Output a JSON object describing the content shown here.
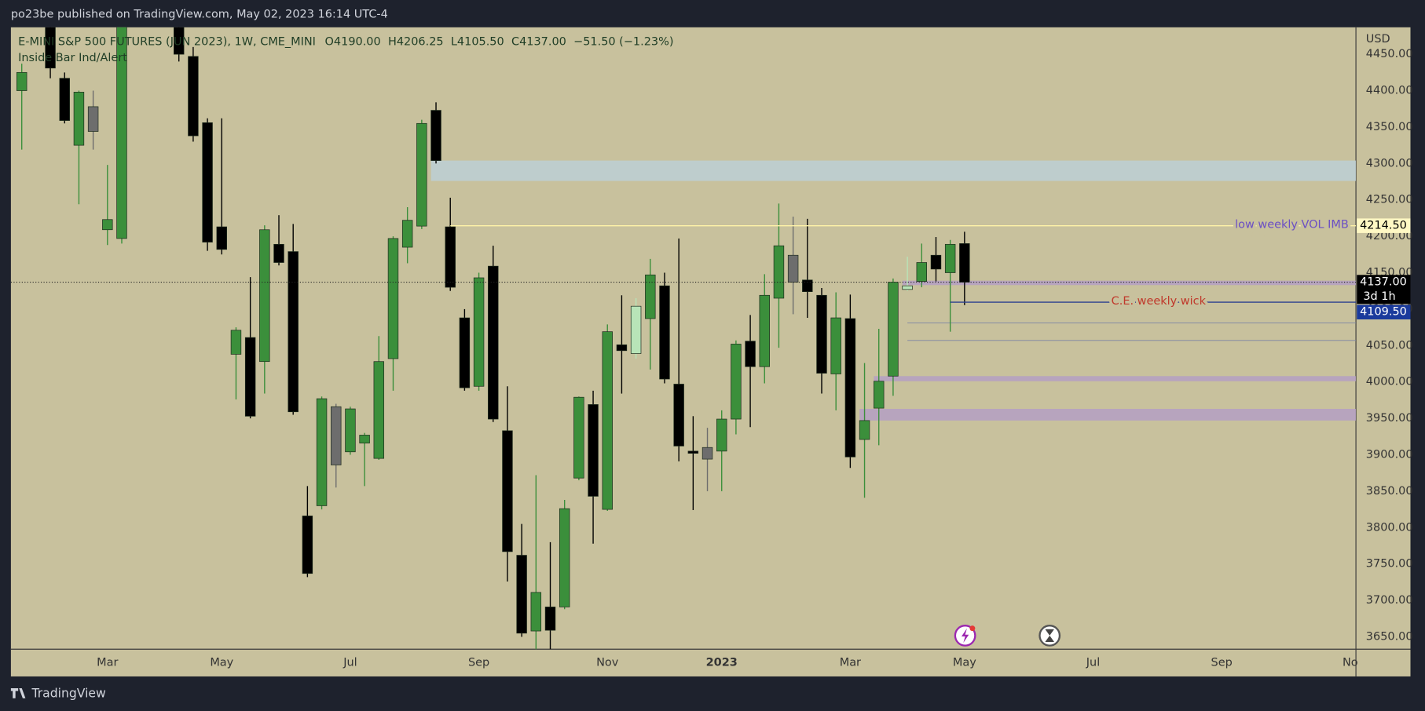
{
  "header": {
    "publisher": "po23be published on TradingView.com, May 02, 2023 16:14 UTC-4"
  },
  "footer": {
    "brand": "TradingView"
  },
  "chart_data": {
    "type": "candlestick",
    "title": "E-MINI S&P 500 FUTURES (JUN 2023), 1W, CME_MINI",
    "legend": [
      {
        "key": "O",
        "value": "4190.00"
      },
      {
        "key": "H",
        "value": "4206.25"
      },
      {
        "key": "L",
        "value": "4105.50"
      },
      {
        "key": "C",
        "value": "4137.00"
      }
    ],
    "change": "−51.50 (−1.23%)",
    "indicator": "Inside Bar Ind/Alert",
    "currency": "USD",
    "open": [
      4400,
      null,
      4500,
      4417,
      4325,
      4378,
      4209,
      4197,
      null,
      null,
      null,
      4540,
      4447,
      4356,
      4213,
      4038,
      4061,
      4028,
      4189,
      4179,
      3816,
      3830,
      3966,
      3904,
      3916,
      3895,
      4032,
      4185,
      4214,
      4373,
      4213,
      4088,
      3994,
      4159,
      3933,
      3762,
      3658,
      3691,
      3691,
      3868,
      3969,
      3825,
      4051,
      4039,
      4087,
      4132,
      3997,
      3905,
      3894,
      3905,
      3949,
      4056,
      4021,
      4115,
      4174,
      4140,
      4119,
      4011,
      4087,
      3921,
      3964,
      4008,
      4127,
      4138,
      4174,
      4150,
      4190
    ],
    "high": [
      4437,
      null,
      4510,
      4425,
      4400,
      4400,
      4298,
      4540,
      null,
      null,
      null,
      4560,
      4460,
      4362,
      4362,
      4075,
      4144,
      4215,
      4229,
      4217,
      3857,
      3980,
      3970,
      3966,
      3930,
      4063,
      4200,
      4240,
      4360,
      4384,
      4253,
      4100,
      4150,
      4187,
      3994,
      3805,
      3872,
      3780,
      3838,
      3980,
      3988,
      4079,
      4119,
      4115,
      4169,
      4150,
      4197,
      3953,
      3937,
      3961,
      4057,
      4092,
      4148,
      4245,
      4227,
      4224,
      4129,
      4123,
      4120,
      4026,
      4073,
      4142,
      4172,
      4190,
      4199,
      4195,
      4206.25
    ],
    "low": [
      4319,
      null,
      4417,
      4355,
      4244,
      4319,
      4188,
      4190,
      null,
      null,
      null,
      4440,
      4330,
      4180,
      4175,
      3976,
      3950,
      3984,
      4160,
      3955,
      3732,
      3825,
      3855,
      3900,
      3857,
      3893,
      3988,
      4163,
      4210,
      4300,
      4125,
      3988,
      3988,
      3945,
      3726,
      3650,
      3610,
      3610,
      3688,
      3865,
      3778,
      3823,
      3984,
      4032,
      4017,
      3998,
      3891,
      3824,
      3850,
      3850,
      3928,
      3938,
      3998,
      4047,
      4093,
      4088,
      3984,
      3961,
      3882,
      3841,
      3913,
      3981,
      4125,
      4130,
      4138,
      4069,
      4105.5
    ],
    "close": [
      4425,
      null,
      4431,
      4359,
      4398,
      4344,
      4223,
      4520,
      null,
      null,
      null,
      4450,
      4338,
      4192,
      4182,
      4071,
      3953,
      4209,
      4164,
      3959,
      3737,
      3977,
      3886,
      3963,
      3927,
      4028,
      4197,
      4222,
      4355,
      4304,
      4130,
      3992,
      4143,
      3949,
      3767,
      3655,
      3711,
      3659,
      3826,
      3979,
      3843,
      4069,
      4043,
      4104,
      4147,
      4004,
      3912,
      3902,
      3910,
      3949,
      4052,
      4021,
      4119,
      4187,
      4137,
      4124,
      4012,
      4088,
      3897,
      3947,
      4001,
      4137,
      4132,
      4164,
      4155,
      4189,
      4137
    ],
    "colors": [
      "#3b8f3b",
      null,
      "#000000",
      "#000000",
      "#3b8f3b",
      "#6d6d6d",
      "#3b8f3b",
      "#3b8f3b",
      null,
      null,
      null,
      "#000000",
      "#000000",
      "#000000",
      "#000000",
      "#3b8f3b",
      "#000000",
      "#3b8f3b",
      "#000000",
      "#000000",
      "#000000",
      "#3b8f3b",
      "#6d6d6d",
      "#3b8f3b",
      "#3b8f3b",
      "#3b8f3b",
      "#3b8f3b",
      "#3b8f3b",
      "#3b8f3b",
      "#000000",
      "#000000",
      "#000000",
      "#3b8f3b",
      "#000000",
      "#000000",
      "#000000",
      "#3b8f3b",
      "#000000",
      "#3b8f3b",
      "#3b8f3b",
      "#000000",
      "#3b8f3b",
      "#000000",
      "#b8e4b8",
      "#3b8f3b",
      "#000000",
      "#000000",
      "#000000",
      "#6d6d6d",
      "#3b8f3b",
      "#3b8f3b",
      "#000000",
      "#3b8f3b",
      "#3b8f3b",
      "#6d6d6d",
      "#000000",
      "#000000",
      "#3b8f3b",
      "#000000",
      "#3b8f3b",
      "#3b8f3b",
      "#3b8f3b",
      "#b8e4b8",
      "#3b8f3b",
      "#000000",
      "#3b8f3b",
      "#000000"
    ],
    "ylim": [
      3633,
      4487
    ],
    "yticks": [
      {
        "value": 3650,
        "label": "3650.00"
      },
      {
        "value": 3700,
        "label": "3700.00"
      },
      {
        "value": 3750,
        "label": "3750.00"
      },
      {
        "value": 3800,
        "label": "3800.00"
      },
      {
        "value": 3850,
        "label": "3850.00"
      },
      {
        "value": 3900,
        "label": "3900.00"
      },
      {
        "value": 3950,
        "label": "3950.00"
      },
      {
        "value": 4000,
        "label": "4000.00"
      },
      {
        "value": 4050,
        "label": "4050.00"
      },
      {
        "value": 4100,
        "label": "4100.00"
      },
      {
        "value": 4150,
        "label": "4150.00"
      },
      {
        "value": 4200,
        "label": "4200.00"
      },
      {
        "value": 4250,
        "label": "4250.00"
      },
      {
        "value": 4300,
        "label": "4300.00"
      },
      {
        "value": 4350,
        "label": "4350.00"
      },
      {
        "value": 4400,
        "label": "4400.00"
      },
      {
        "value": 4450,
        "label": "4450.00"
      }
    ],
    "xlim": [
      -0.76,
      93.4
    ],
    "xticks": [
      {
        "value": 6,
        "label": "Mar"
      },
      {
        "value": 14,
        "label": "May"
      },
      {
        "value": 23,
        "label": "Jul"
      },
      {
        "value": 32,
        "label": "Sep"
      },
      {
        "value": 41,
        "label": "Nov"
      },
      {
        "value": 49,
        "label": "2023"
      },
      {
        "value": 58,
        "label": "Mar"
      },
      {
        "value": 66,
        "label": "May"
      },
      {
        "value": 75,
        "label": "Jul"
      },
      {
        "value": 84,
        "label": "Sep"
      },
      {
        "value": 93,
        "label": "No"
      }
    ],
    "last_price": {
      "value": 4137,
      "label": "4137.00",
      "countdown": "3d 1h"
    },
    "levels": [
      {
        "name": "low weekly VOL IMB",
        "value": 4214.5,
        "label": "4214.50",
        "start": 30,
        "color": "#fff3a8",
        "text_color": "#6b4fc4",
        "tag_color": "#fff8c4",
        "tag_text": "#000000"
      },
      {
        "name": "C.E. weekly wick",
        "value": 4109.5,
        "label": "4109.50",
        "start": 65,
        "color": "#2b3f8f",
        "text_color": "#c0392b",
        "tag_color": "#1a3a9c",
        "tag_text": "#ffffff"
      }
    ],
    "zones": [
      {
        "low": 4276,
        "high": 4304,
        "start": 29,
        "color": "#bccfd6"
      },
      {
        "low": 4133,
        "high": 4139,
        "start": 62,
        "color": "#b49fc4"
      },
      {
        "low": 4001,
        "high": 4008,
        "start": 60,
        "color": "#b49fc4"
      },
      {
        "low": 3947,
        "high": 3963,
        "start": 59,
        "color": "#b49fc4"
      }
    ],
    "lines": [
      {
        "value": 4081,
        "start": 62
      },
      {
        "value": 4057,
        "start": 62
      }
    ]
  }
}
